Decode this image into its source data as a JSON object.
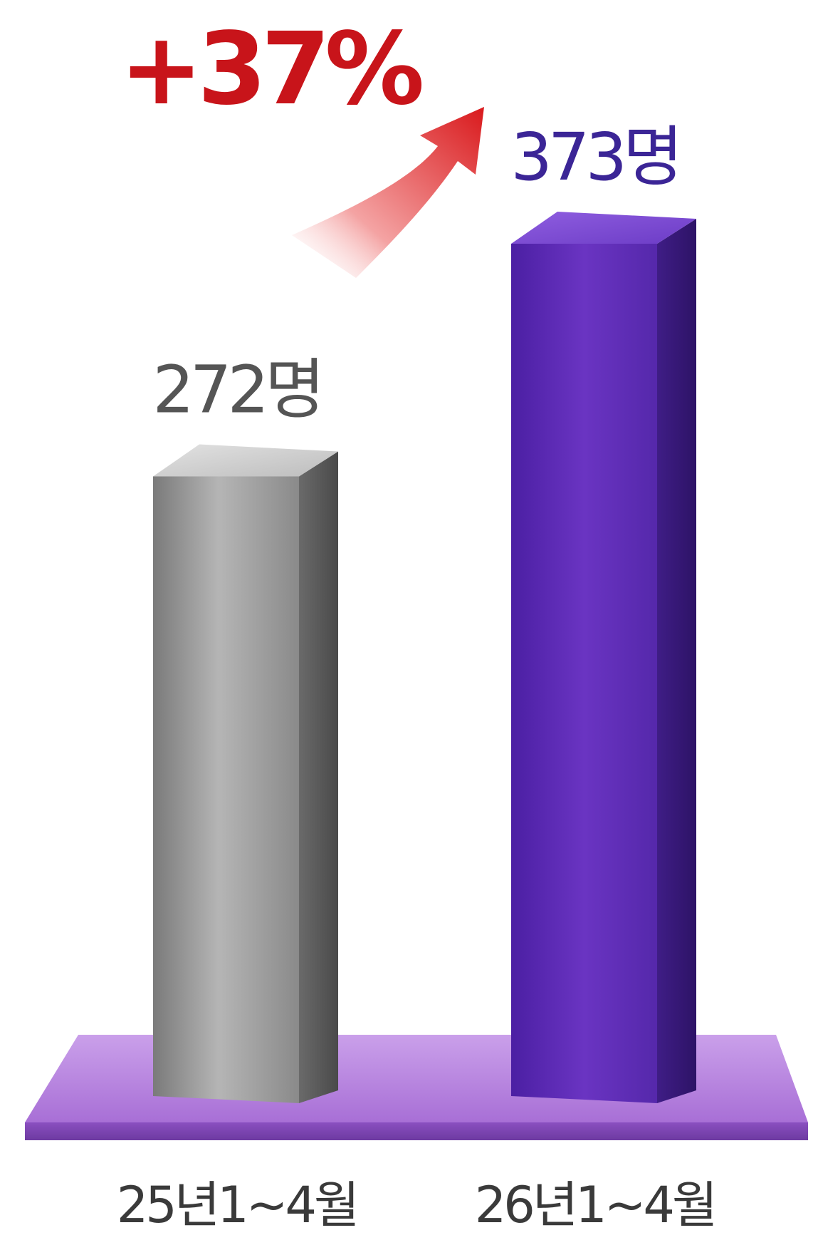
{
  "chart_data": {
    "type": "bar",
    "categories": [
      "25년1~4월",
      "26년1~4월"
    ],
    "values": [
      272,
      373
    ],
    "value_labels": [
      "272명",
      "373명"
    ],
    "change_label": "+37%",
    "ylim": [
      0,
      420
    ],
    "grid": false,
    "colors": {
      "bar_1": "#8e8e8e",
      "bar_2": "#5a2db0",
      "label_1": "#555555",
      "label_2": "#3b2596",
      "change": "#c8141a",
      "floor": "#b27ad8"
    }
  }
}
